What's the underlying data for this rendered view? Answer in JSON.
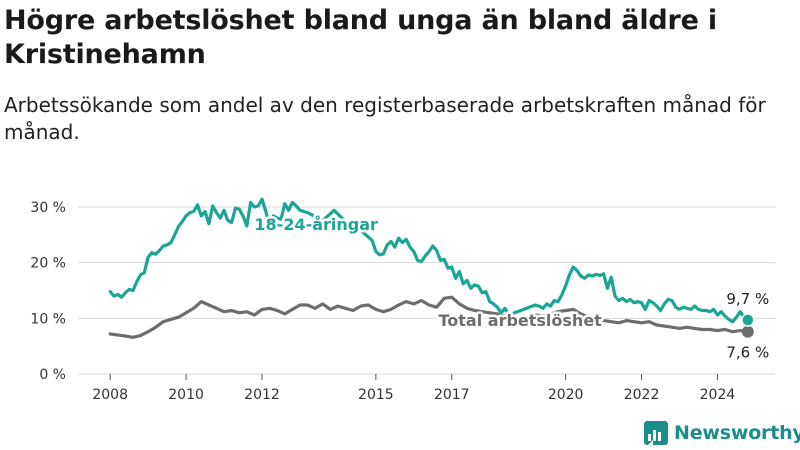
{
  "title": "Högre arbetslöshet bland unga än bland äldre i Kristinehamn",
  "subtitle": "Arbetssökande som andel av den registerbaserade arbetskraften månad för månad.",
  "brand": {
    "name": "Newsworthy",
    "color": "#1b8e8c"
  },
  "chart_data": {
    "type": "line",
    "title": "Högre arbetslöshet bland unga än bland äldre i Kristinehamn",
    "subtitle": "Arbetssökande som andel av den registerbaserade arbetskraften månad för månad.",
    "xlabel": "",
    "ylabel": "",
    "xlim": [
      2007.6,
      2025.2
    ],
    "ylim": [
      0,
      30
    ],
    "y_ticks": [
      0,
      10,
      20,
      30
    ],
    "y_tick_labels": [
      "0 %",
      "10 %",
      "20 %",
      "30 %"
    ],
    "x_ticks": [
      2008,
      2010,
      2012,
      2015,
      2017,
      2020,
      2022,
      2024
    ],
    "x_tick_labels": [
      "2008",
      "2010",
      "2012",
      "2015",
      "2017",
      "2020",
      "2022",
      "2024"
    ],
    "grid": true,
    "series": [
      {
        "name": "18-24-åringar",
        "color": "#1aa595",
        "end_label": "9,7 %",
        "points": [
          [
            2008.0,
            14.8
          ],
          [
            2008.1,
            14.0
          ],
          [
            2008.2,
            14.3
          ],
          [
            2008.3,
            13.8
          ],
          [
            2008.4,
            14.6
          ],
          [
            2008.5,
            15.2
          ],
          [
            2008.6,
            15.0
          ],
          [
            2008.7,
            16.6
          ],
          [
            2008.8,
            17.8
          ],
          [
            2008.9,
            18.2
          ],
          [
            2009.0,
            21.0
          ],
          [
            2009.1,
            21.8
          ],
          [
            2009.2,
            21.5
          ],
          [
            2009.3,
            22.2
          ],
          [
            2009.4,
            23.0
          ],
          [
            2009.5,
            23.2
          ],
          [
            2009.6,
            23.6
          ],
          [
            2009.7,
            25.0
          ],
          [
            2009.8,
            26.5
          ],
          [
            2009.9,
            27.4
          ],
          [
            2010.0,
            28.4
          ],
          [
            2010.1,
            29.0
          ],
          [
            2010.2,
            29.2
          ],
          [
            2010.3,
            30.4
          ],
          [
            2010.4,
            28.4
          ],
          [
            2010.5,
            29.2
          ],
          [
            2010.6,
            27.0
          ],
          [
            2010.7,
            30.2
          ],
          [
            2010.8,
            29.0
          ],
          [
            2010.9,
            28.0
          ],
          [
            2011.0,
            29.4
          ],
          [
            2011.1,
            27.6
          ],
          [
            2011.2,
            27.2
          ],
          [
            2011.3,
            29.8
          ],
          [
            2011.4,
            29.6
          ],
          [
            2011.5,
            28.4
          ],
          [
            2011.6,
            26.6
          ],
          [
            2011.7,
            30.8
          ],
          [
            2011.8,
            30.0
          ],
          [
            2011.9,
            30.2
          ],
          [
            2012.0,
            31.4
          ],
          [
            2012.1,
            29.2
          ],
          [
            2012.2,
            26.8
          ],
          [
            2012.3,
            28.4
          ],
          [
            2012.4,
            28.0
          ],
          [
            2012.5,
            27.8
          ],
          [
            2012.6,
            30.6
          ],
          [
            2012.7,
            29.4
          ],
          [
            2012.8,
            30.8
          ],
          [
            2012.9,
            30.2
          ],
          [
            2013.0,
            29.4
          ],
          [
            2013.2,
            29.0
          ],
          [
            2013.6,
            27.6
          ],
          [
            2013.9,
            29.4
          ],
          [
            2014.2,
            27.4
          ],
          [
            2014.5,
            26.6
          ],
          [
            2014.7,
            25.2
          ],
          [
            2014.9,
            24.0
          ],
          [
            2015.0,
            22.0
          ],
          [
            2015.1,
            21.4
          ],
          [
            2015.2,
            21.6
          ],
          [
            2015.3,
            23.2
          ],
          [
            2015.4,
            23.8
          ],
          [
            2015.5,
            22.8
          ],
          [
            2015.6,
            24.4
          ],
          [
            2015.7,
            23.6
          ],
          [
            2015.8,
            24.2
          ],
          [
            2015.9,
            22.8
          ],
          [
            2016.0,
            22.0
          ],
          [
            2016.1,
            20.4
          ],
          [
            2016.2,
            20.2
          ],
          [
            2016.3,
            21.2
          ],
          [
            2016.4,
            22.0
          ],
          [
            2016.5,
            23.0
          ],
          [
            2016.6,
            22.2
          ],
          [
            2016.7,
            20.4
          ],
          [
            2016.8,
            20.6
          ],
          [
            2016.9,
            19.0
          ],
          [
            2017.0,
            19.2
          ],
          [
            2017.1,
            17.2
          ],
          [
            2017.2,
            18.4
          ],
          [
            2017.3,
            16.2
          ],
          [
            2017.4,
            16.8
          ],
          [
            2017.5,
            15.4
          ],
          [
            2017.6,
            16.0
          ],
          [
            2017.7,
            15.8
          ],
          [
            2017.8,
            14.6
          ],
          [
            2017.9,
            14.8
          ],
          [
            2018.0,
            13.0
          ],
          [
            2018.1,
            12.6
          ],
          [
            2018.2,
            12.0
          ],
          [
            2018.3,
            11.0
          ],
          [
            2018.4,
            11.8
          ],
          [
            2018.5,
            10.6
          ],
          [
            2019.2,
            12.4
          ],
          [
            2019.3,
            12.2
          ],
          [
            2019.4,
            11.8
          ],
          [
            2019.5,
            12.6
          ],
          [
            2019.6,
            12.2
          ],
          [
            2019.7,
            13.2
          ],
          [
            2019.8,
            13.0
          ],
          [
            2019.9,
            14.2
          ],
          [
            2020.0,
            15.8
          ],
          [
            2020.1,
            17.8
          ],
          [
            2020.2,
            19.2
          ],
          [
            2020.3,
            18.6
          ],
          [
            2020.4,
            17.6
          ],
          [
            2020.5,
            17.2
          ],
          [
            2020.6,
            17.8
          ],
          [
            2020.7,
            17.6
          ],
          [
            2020.8,
            17.9
          ],
          [
            2020.9,
            17.7
          ],
          [
            2021.0,
            18.0
          ],
          [
            2021.1,
            15.4
          ],
          [
            2021.2,
            17.4
          ],
          [
            2021.3,
            14.0
          ],
          [
            2021.4,
            13.2
          ],
          [
            2021.5,
            13.6
          ],
          [
            2021.6,
            13.0
          ],
          [
            2021.7,
            13.4
          ],
          [
            2021.8,
            12.8
          ],
          [
            2021.9,
            13.0
          ],
          [
            2022.0,
            12.8
          ],
          [
            2022.1,
            11.6
          ],
          [
            2022.2,
            13.2
          ],
          [
            2022.3,
            12.8
          ],
          [
            2022.4,
            12.2
          ],
          [
            2022.5,
            11.4
          ],
          [
            2022.6,
            12.6
          ],
          [
            2022.7,
            13.4
          ],
          [
            2022.8,
            13.2
          ],
          [
            2022.9,
            12.0
          ],
          [
            2023.0,
            11.6
          ],
          [
            2023.1,
            12.0
          ],
          [
            2023.2,
            11.8
          ],
          [
            2023.3,
            11.6
          ],
          [
            2023.4,
            12.2
          ],
          [
            2023.5,
            11.6
          ],
          [
            2023.6,
            11.4
          ],
          [
            2023.7,
            11.4
          ],
          [
            2023.8,
            11.2
          ],
          [
            2023.9,
            11.6
          ],
          [
            2024.0,
            10.6
          ],
          [
            2024.1,
            11.2
          ],
          [
            2024.2,
            10.4
          ],
          [
            2024.3,
            9.8
          ],
          [
            2024.4,
            9.4
          ],
          [
            2024.5,
            10.2
          ],
          [
            2024.6,
            11.2
          ],
          [
            2024.7,
            10.2
          ],
          [
            2024.8,
            9.7
          ]
        ]
      },
      {
        "name": "Total arbetslöshet",
        "color": "#6d6d6d",
        "end_label": "7,6 %",
        "points": [
          [
            2008.0,
            7.2
          ],
          [
            2008.2,
            7.0
          ],
          [
            2008.4,
            6.8
          ],
          [
            2008.6,
            6.6
          ],
          [
            2008.8,
            6.9
          ],
          [
            2009.0,
            7.6
          ],
          [
            2009.2,
            8.4
          ],
          [
            2009.4,
            9.4
          ],
          [
            2009.6,
            9.8
          ],
          [
            2009.8,
            10.2
          ],
          [
            2010.0,
            11.0
          ],
          [
            2010.2,
            11.8
          ],
          [
            2010.4,
            13.0
          ],
          [
            2010.6,
            12.4
          ],
          [
            2010.8,
            11.8
          ],
          [
            2011.0,
            11.2
          ],
          [
            2011.2,
            11.4
          ],
          [
            2011.4,
            11.0
          ],
          [
            2011.6,
            11.2
          ],
          [
            2011.8,
            10.6
          ],
          [
            2012.0,
            11.6
          ],
          [
            2012.2,
            11.8
          ],
          [
            2012.4,
            11.4
          ],
          [
            2012.6,
            10.8
          ],
          [
            2012.8,
            11.6
          ],
          [
            2013.0,
            12.4
          ],
          [
            2013.2,
            12.4
          ],
          [
            2013.4,
            11.8
          ],
          [
            2013.6,
            12.6
          ],
          [
            2013.8,
            11.6
          ],
          [
            2014.0,
            12.2
          ],
          [
            2014.2,
            11.8
          ],
          [
            2014.4,
            11.4
          ],
          [
            2014.6,
            12.2
          ],
          [
            2014.8,
            12.4
          ],
          [
            2015.0,
            11.6
          ],
          [
            2015.2,
            11.2
          ],
          [
            2015.4,
            11.6
          ],
          [
            2015.6,
            12.4
          ],
          [
            2015.8,
            13.0
          ],
          [
            2016.0,
            12.6
          ],
          [
            2016.2,
            13.2
          ],
          [
            2016.4,
            12.4
          ],
          [
            2016.6,
            12.0
          ],
          [
            2016.8,
            13.6
          ],
          [
            2017.0,
            13.8
          ],
          [
            2017.2,
            12.6
          ],
          [
            2017.4,
            11.8
          ],
          [
            2017.6,
            11.4
          ],
          [
            2017.8,
            11.2
          ],
          [
            2018.0,
            11.0
          ],
          [
            2018.2,
            10.8
          ],
          [
            2018.4,
            10.4
          ],
          [
            2018.6,
            10.2
          ],
          [
            2018.8,
            10.0
          ],
          [
            2019.0,
            10.2
          ],
          [
            2019.2,
            10.6
          ],
          [
            2019.4,
            10.4
          ],
          [
            2019.6,
            10.8
          ],
          [
            2019.8,
            11.2
          ],
          [
            2020.0,
            11.4
          ],
          [
            2020.2,
            11.6
          ],
          [
            2020.4,
            10.8
          ],
          [
            2020.6,
            10.2
          ],
          [
            2020.8,
            9.8
          ],
          [
            2021.0,
            9.6
          ],
          [
            2021.2,
            9.4
          ],
          [
            2021.4,
            9.2
          ],
          [
            2021.6,
            9.6
          ],
          [
            2021.8,
            9.4
          ],
          [
            2022.0,
            9.2
          ],
          [
            2022.2,
            9.4
          ],
          [
            2022.4,
            8.8
          ],
          [
            2022.6,
            8.6
          ],
          [
            2022.8,
            8.4
          ],
          [
            2023.0,
            8.2
          ],
          [
            2023.2,
            8.4
          ],
          [
            2023.4,
            8.2
          ],
          [
            2023.6,
            8.0
          ],
          [
            2023.8,
            8.0
          ],
          [
            2024.0,
            7.8
          ],
          [
            2024.2,
            8.0
          ],
          [
            2024.4,
            7.6
          ],
          [
            2024.6,
            7.8
          ],
          [
            2024.8,
            7.6
          ]
        ]
      }
    ]
  }
}
